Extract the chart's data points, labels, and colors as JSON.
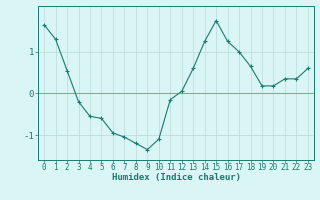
{
  "x": [
    0,
    1,
    2,
    3,
    4,
    5,
    6,
    7,
    8,
    9,
    10,
    11,
    12,
    13,
    14,
    15,
    16,
    17,
    18,
    19,
    20,
    21,
    22,
    23
  ],
  "y": [
    1.65,
    1.3,
    0.55,
    -0.2,
    -0.55,
    -0.6,
    -0.95,
    -1.05,
    -1.2,
    -1.35,
    -1.1,
    -0.15,
    0.05,
    0.6,
    1.25,
    1.75,
    1.25,
    1.0,
    0.65,
    0.18,
    0.18,
    0.35,
    0.35,
    0.6
  ],
  "line_color": "#1a7a6e",
  "marker": "+",
  "marker_color": "#1a7a6e",
  "bg_color": "#d9f5f5",
  "grid_color": "#b8dada",
  "xlabel": "Humidex (Indice chaleur)",
  "xlim": [
    -0.5,
    23.5
  ],
  "ylim": [
    -1.6,
    2.1
  ],
  "yticks": [
    -1,
    0,
    1
  ],
  "xticks": [
    0,
    1,
    2,
    3,
    4,
    5,
    6,
    7,
    8,
    9,
    10,
    11,
    12,
    13,
    14,
    15,
    16,
    17,
    18,
    19,
    20,
    21,
    22,
    23
  ],
  "hline_color": "#c09090",
  "hline_y": 0,
  "xlabel_fontsize": 6.5,
  "tick_fontsize": 5.5,
  "ytick_fontsize": 6.5
}
